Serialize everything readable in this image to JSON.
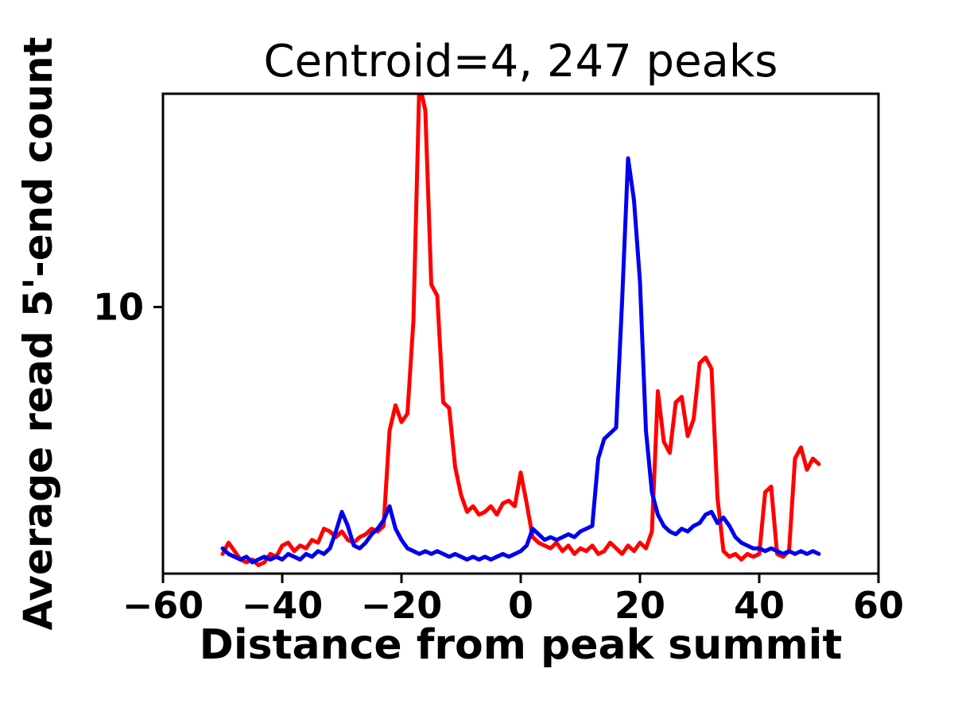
{
  "chart_data": {
    "type": "line",
    "title": "Centroid=4, 247 peaks",
    "xlabel": "Distance from peak summit",
    "ylabel": "Average read 5'-end count",
    "xlim": [
      -60,
      60
    ],
    "ylim": [
      0.5,
      17.6
    ],
    "xticks": [
      -60,
      -40,
      -20,
      0,
      20,
      40,
      60
    ],
    "xtick_labels": [
      "−60",
      "−40",
      "−20",
      "0",
      "20",
      "40",
      "60"
    ],
    "yticks": [
      10
    ],
    "ytick_labels": [
      "10"
    ],
    "grid": false,
    "legend": null,
    "x": [
      -50,
      -49,
      -48,
      -47,
      -46,
      -45,
      -44,
      -43,
      -42,
      -41,
      -40,
      -39,
      -38,
      -37,
      -36,
      -35,
      -34,
      -33,
      -32,
      -31,
      -30,
      -29,
      -28,
      -27,
      -26,
      -25,
      -24,
      -23,
      -22,
      -21,
      -20,
      -19,
      -18,
      -17,
      -16,
      -15,
      -14,
      -13,
      -12,
      -11,
      -10,
      -9,
      -8,
      -7,
      -6,
      -5,
      -4,
      -3,
      -2,
      -1,
      0,
      1,
      2,
      3,
      4,
      5,
      6,
      7,
      8,
      9,
      10,
      11,
      12,
      13,
      14,
      15,
      16,
      17,
      18,
      19,
      20,
      21,
      22,
      23,
      24,
      25,
      26,
      27,
      28,
      29,
      30,
      31,
      32,
      33,
      34,
      35,
      36,
      37,
      38,
      39,
      40,
      41,
      42,
      43,
      44,
      45,
      46,
      47,
      48,
      49,
      50
    ],
    "series": [
      {
        "name": "red",
        "color": "#ff0000",
        "values": [
          1.2,
          1.6,
          1.3,
          1.0,
          0.9,
          1.0,
          0.8,
          0.9,
          1.2,
          1.1,
          1.5,
          1.6,
          1.3,
          1.5,
          1.4,
          1.7,
          1.6,
          2.1,
          2.0,
          1.8,
          2.0,
          1.7,
          1.6,
          1.8,
          1.9,
          2.1,
          2.0,
          2.2,
          5.6,
          6.5,
          5.9,
          6.2,
          9.5,
          18.0,
          17.0,
          10.8,
          10.4,
          6.6,
          6.4,
          4.3,
          3.3,
          2.7,
          2.9,
          2.6,
          2.7,
          2.9,
          2.6,
          3.0,
          3.1,
          2.9,
          4.1,
          3.0,
          1.8,
          1.6,
          1.5,
          1.4,
          1.6,
          1.3,
          1.5,
          1.2,
          1.4,
          1.3,
          1.5,
          1.2,
          1.3,
          1.6,
          1.4,
          1.2,
          1.5,
          1.3,
          1.6,
          1.4,
          2.0,
          7.0,
          5.2,
          4.8,
          6.6,
          6.8,
          5.4,
          6.0,
          8.0,
          8.2,
          7.8,
          3.2,
          1.3,
          1.1,
          1.2,
          1.0,
          1.2,
          1.1,
          1.2,
          3.4,
          3.6,
          1.2,
          1.1,
          1.3,
          4.6,
          5.0,
          4.2,
          4.6,
          4.4
        ]
      },
      {
        "name": "blue",
        "color": "#0000ee",
        "values": [
          1.4,
          1.2,
          1.1,
          1.0,
          1.1,
          0.9,
          1.0,
          1.1,
          1.0,
          1.1,
          1.0,
          1.2,
          1.1,
          1.0,
          1.2,
          1.1,
          1.3,
          1.2,
          1.4,
          2.0,
          2.7,
          2.2,
          1.5,
          1.4,
          1.6,
          1.9,
          2.1,
          2.4,
          2.9,
          2.1,
          1.7,
          1.4,
          1.3,
          1.2,
          1.3,
          1.2,
          1.3,
          1.2,
          1.1,
          1.2,
          1.1,
          1.0,
          1.1,
          1.0,
          1.1,
          1.0,
          1.1,
          1.2,
          1.1,
          1.2,
          1.3,
          1.5,
          2.1,
          1.9,
          1.7,
          1.8,
          1.7,
          1.8,
          1.9,
          1.8,
          2.0,
          2.1,
          2.2,
          4.6,
          5.3,
          5.5,
          5.7,
          10.2,
          15.3,
          13.8,
          10.9,
          5.6,
          3.4,
          2.6,
          2.2,
          2.0,
          1.9,
          2.1,
          2.0,
          2.2,
          2.3,
          2.6,
          2.7,
          2.3,
          2.5,
          2.2,
          1.8,
          1.6,
          1.5,
          1.4,
          1.4,
          1.3,
          1.4,
          1.3,
          1.2,
          1.3,
          1.2,
          1.3,
          1.2,
          1.3,
          1.2
        ]
      }
    ]
  }
}
